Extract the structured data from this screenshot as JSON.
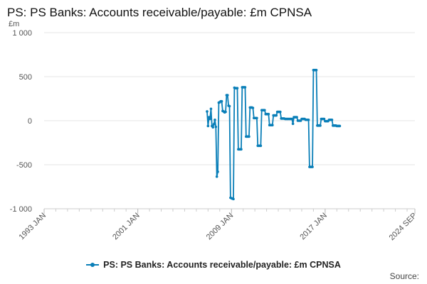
{
  "title": "PS: PS Banks: Accounts receivable/payable: £m CPNSA",
  "source_label": "Source:",
  "colors": {
    "series": "#0a7fb8",
    "grid": "#e6e6e6",
    "axis_text": "#555555"
  },
  "legend_icon": "line-with-dot-icon",
  "chart_data": {
    "type": "line",
    "ylabel": "£m",
    "ylim": [
      -1000,
      1000
    ],
    "yticks": [
      1000,
      500,
      0,
      -500,
      -1000
    ],
    "ytick_labels": [
      "1 000",
      "500",
      "0",
      "-500",
      "-1 000"
    ],
    "xlim": [
      "1993-01",
      "2024-09"
    ],
    "xticks": [
      "1993-01",
      "2001-01",
      "2009-01",
      "2017-01",
      "2024-09"
    ],
    "xtick_labels": [
      "1993 JAN",
      "2001 JAN",
      "2009 JAN",
      "2017 JAN",
      "2024 SEP"
    ],
    "grid": true,
    "legend_position": "bottom",
    "series": [
      {
        "name": "PS: PS Banks: Accounts receivable/payable: £m CPNSA",
        "points": [
          [
            "2006-12",
            105
          ],
          [
            "2007-01",
            -60
          ],
          [
            "2007-02",
            40
          ],
          [
            "2007-03",
            20
          ],
          [
            "2007-04",
            135
          ],
          [
            "2007-05",
            -60
          ],
          [
            "2007-06",
            -75
          ],
          [
            "2007-07",
            -40
          ],
          [
            "2007-08",
            10
          ],
          [
            "2007-09",
            -70
          ],
          [
            "2007-10",
            -635
          ],
          [
            "2007-11",
            -580
          ],
          [
            "2007-12",
            205
          ],
          [
            "2008-01",
            210
          ],
          [
            "2008-02",
            220
          ],
          [
            "2008-03",
            220
          ],
          [
            "2008-04",
            110
          ],
          [
            "2008-05",
            105
          ],
          [
            "2008-06",
            95
          ],
          [
            "2008-07",
            100
          ],
          [
            "2008-08",
            290
          ],
          [
            "2008-09",
            290
          ],
          [
            "2008-10",
            170
          ],
          [
            "2008-11",
            165
          ],
          [
            "2008-12",
            -875
          ],
          [
            "2009-01",
            -880
          ],
          [
            "2009-02",
            -885
          ],
          [
            "2009-03",
            -890
          ],
          [
            "2009-04",
            375
          ],
          [
            "2009-05",
            370
          ],
          [
            "2009-06",
            370
          ],
          [
            "2009-07",
            370
          ],
          [
            "2009-08",
            -325
          ],
          [
            "2009-09",
            -325
          ],
          [
            "2009-10",
            -325
          ],
          [
            "2009-11",
            -325
          ],
          [
            "2009-12",
            380
          ],
          [
            "2010-01",
            380
          ],
          [
            "2010-02",
            380
          ],
          [
            "2010-03",
            380
          ],
          [
            "2010-04",
            -180
          ],
          [
            "2010-05",
            -180
          ],
          [
            "2010-06",
            -180
          ],
          [
            "2010-07",
            -180
          ],
          [
            "2010-08",
            150
          ],
          [
            "2010-09",
            150
          ],
          [
            "2010-10",
            150
          ],
          [
            "2010-11",
            145
          ],
          [
            "2010-12",
            30
          ],
          [
            "2011-01",
            30
          ],
          [
            "2011-02",
            30
          ],
          [
            "2011-03",
            30
          ],
          [
            "2011-04",
            -285
          ],
          [
            "2011-05",
            -285
          ],
          [
            "2011-06",
            -285
          ],
          [
            "2011-07",
            -285
          ],
          [
            "2011-08",
            120
          ],
          [
            "2011-09",
            120
          ],
          [
            "2011-10",
            120
          ],
          [
            "2011-11",
            120
          ],
          [
            "2011-12",
            75
          ],
          [
            "2012-01",
            75
          ],
          [
            "2012-02",
            75
          ],
          [
            "2012-03",
            75
          ],
          [
            "2012-04",
            -50
          ],
          [
            "2012-05",
            -50
          ],
          [
            "2012-06",
            -50
          ],
          [
            "2012-07",
            -50
          ],
          [
            "2012-08",
            60
          ],
          [
            "2012-09",
            60
          ],
          [
            "2012-10",
            60
          ],
          [
            "2012-11",
            60
          ],
          [
            "2012-12",
            100
          ],
          [
            "2013-01",
            100
          ],
          [
            "2013-02",
            100
          ],
          [
            "2013-03",
            100
          ],
          [
            "2013-04",
            25
          ],
          [
            "2013-05",
            25
          ],
          [
            "2013-06",
            25
          ],
          [
            "2013-07",
            25
          ],
          [
            "2013-08",
            20
          ],
          [
            "2013-09",
            20
          ],
          [
            "2013-10",
            20
          ],
          [
            "2013-11",
            20
          ],
          [
            "2013-12",
            20
          ],
          [
            "2014-01",
            20
          ],
          [
            "2014-02",
            20
          ],
          [
            "2014-03",
            20
          ],
          [
            "2014-04",
            -35
          ],
          [
            "2014-05",
            40
          ],
          [
            "2014-06",
            40
          ],
          [
            "2014-07",
            40
          ],
          [
            "2014-08",
            40
          ],
          [
            "2014-09",
            0
          ],
          [
            "2014-10",
            0
          ],
          [
            "2014-11",
            0
          ],
          [
            "2014-12",
            0
          ],
          [
            "2015-01",
            20
          ],
          [
            "2015-02",
            20
          ],
          [
            "2015-03",
            20
          ],
          [
            "2015-04",
            20
          ],
          [
            "2015-05",
            10
          ],
          [
            "2015-06",
            10
          ],
          [
            "2015-07",
            10
          ],
          [
            "2015-08",
            10
          ],
          [
            "2015-09",
            -525
          ],
          [
            "2015-10",
            -525
          ],
          [
            "2015-11",
            -525
          ],
          [
            "2015-12",
            -525
          ],
          [
            "2016-01",
            575
          ],
          [
            "2016-02",
            575
          ],
          [
            "2016-03",
            575
          ],
          [
            "2016-04",
            575
          ],
          [
            "2016-05",
            -55
          ],
          [
            "2016-06",
            -55
          ],
          [
            "2016-07",
            -55
          ],
          [
            "2016-08",
            -55
          ],
          [
            "2016-09",
            20
          ],
          [
            "2016-10",
            20
          ],
          [
            "2016-11",
            20
          ],
          [
            "2016-12",
            20
          ],
          [
            "2017-01",
            -5
          ],
          [
            "2017-02",
            -5
          ],
          [
            "2017-03",
            -5
          ],
          [
            "2017-04",
            -5
          ],
          [
            "2017-05",
            10
          ],
          [
            "2017-06",
            10
          ],
          [
            "2017-07",
            10
          ],
          [
            "2017-08",
            10
          ],
          [
            "2017-09",
            -55
          ],
          [
            "2017-10",
            -55
          ],
          [
            "2017-11",
            -55
          ],
          [
            "2017-12",
            -55
          ],
          [
            "2018-01",
            -60
          ],
          [
            "2018-02",
            -60
          ],
          [
            "2018-03",
            -60
          ],
          [
            "2018-04",
            -60
          ]
        ]
      }
    ]
  }
}
